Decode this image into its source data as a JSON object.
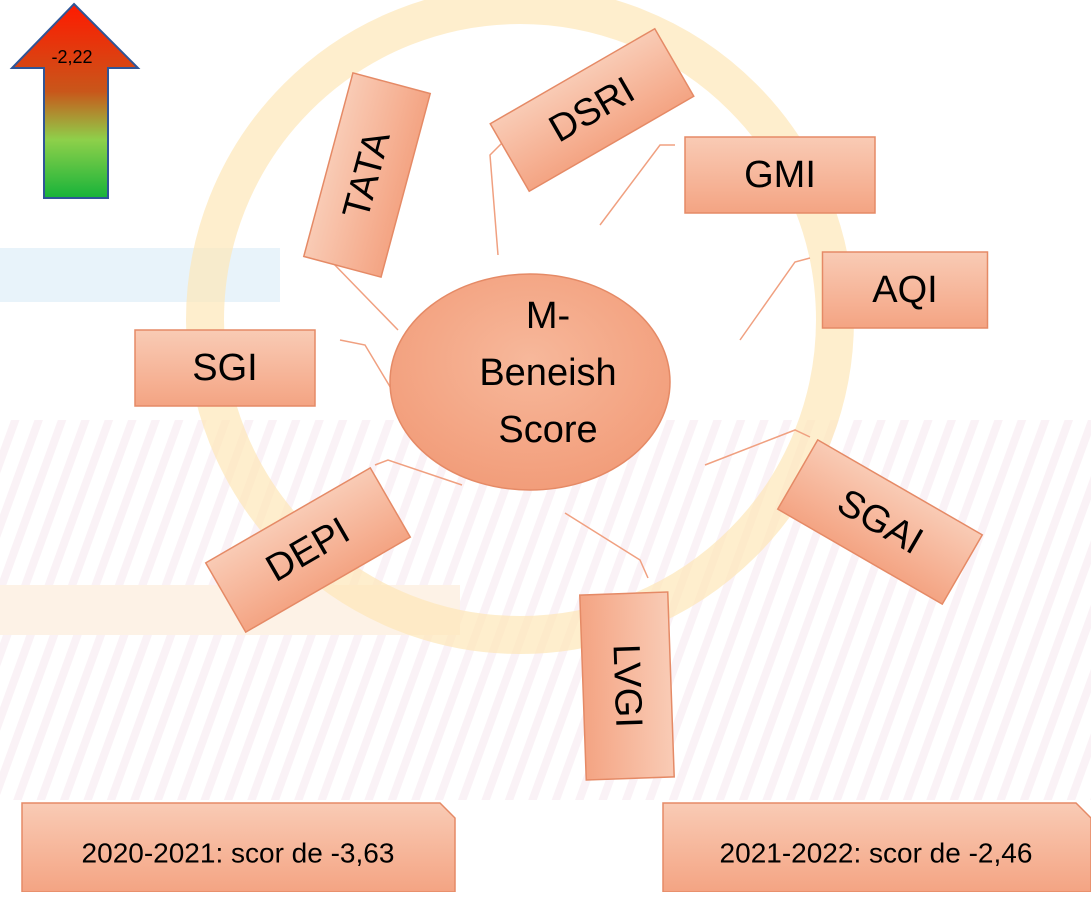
{
  "arrow_label": "-2,22",
  "center": {
    "lines": [
      "M-",
      "Beneish",
      "Score"
    ]
  },
  "nodes": [
    {
      "label": "TATA"
    },
    {
      "label": "DSRI"
    },
    {
      "label": "GMI"
    },
    {
      "label": "AQI"
    },
    {
      "label": "SGI"
    },
    {
      "label": "SGAI"
    },
    {
      "label": "DEPI"
    },
    {
      "label": "LVGI"
    }
  ],
  "notes": [
    "2020-2021: scor de -3,63",
    "2021-2022: scor de -2,46"
  ]
}
